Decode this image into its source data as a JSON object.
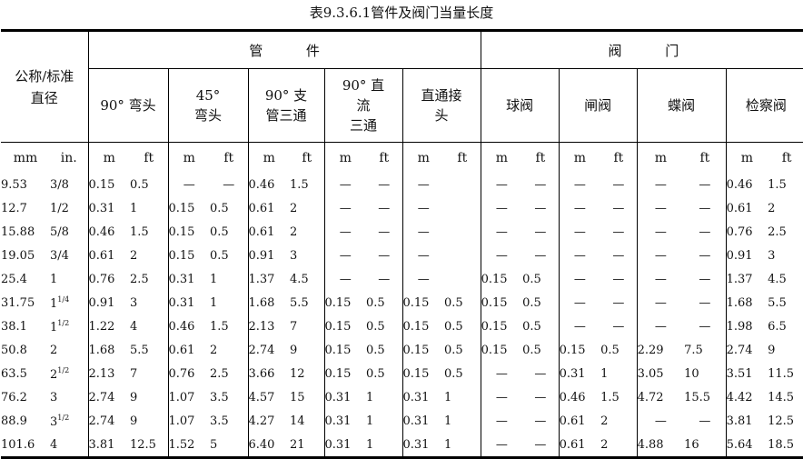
{
  "title": "表9.3.6.1管件及阀门当量长度",
  "header": {
    "nominal": "公称/标准\n直径",
    "group_pipe": "管          件",
    "group_valve": "阀          门",
    "subs": [
      "90° 弯头",
      "45°\n弯头",
      "90° 支\n管三通",
      "90° 直\n流\n三通",
      "直通接\n头",
      "球阀",
      "闸阀",
      "蝶阀",
      "检察阀"
    ],
    "unit_mm": "mm",
    "unit_in": "in.",
    "unit_m": "m",
    "unit_ft": "ft"
  },
  "rows": [
    {
      "mm": "9.53",
      "in": "3/8",
      "in_sup": "",
      "v": [
        "0.15",
        "0.5",
        "—",
        "—",
        "0.46",
        "1.5",
        "—",
        "—",
        "—",
        "",
        "—",
        "—",
        "—",
        "—",
        "—",
        "—",
        "0.46",
        "1.5"
      ]
    },
    {
      "mm": "12.7",
      "in": "1/2",
      "in_sup": "",
      "v": [
        "0.31",
        "1",
        "0.15",
        "0.5",
        "0.61",
        "2",
        "—",
        "—",
        "—",
        "",
        "—",
        "—",
        "—",
        "—",
        "—",
        "—",
        "0.61",
        "2"
      ]
    },
    {
      "mm": "15.88",
      "in": "5/8",
      "in_sup": "",
      "v": [
        "0.46",
        "1.5",
        "0.15",
        "0.5",
        "0.61",
        "2",
        "—",
        "—",
        "—",
        "",
        "—",
        "—",
        "—",
        "—",
        "—",
        "—",
        "0.76",
        "2.5"
      ]
    },
    {
      "mm": "19.05",
      "in": "3/4",
      "in_sup": "",
      "v": [
        "0.61",
        "2",
        "0.15",
        "0.5",
        "0.91",
        "3",
        "—",
        "—",
        "—",
        "",
        "—",
        "—",
        "—",
        "—",
        "—",
        "—",
        "0.91",
        "3"
      ]
    },
    {
      "mm": "25.4",
      "in": "1",
      "in_sup": "",
      "v": [
        "0.76",
        "2.5",
        "0.31",
        "1",
        "1.37",
        "4.5",
        "—",
        "—",
        "—",
        "",
        "0.15",
        "0.5",
        "—",
        "—",
        "—",
        "—",
        "1.37",
        "4.5"
      ]
    },
    {
      "mm": "31.75",
      "in": "1",
      "in_sup": "1/4",
      "v": [
        "0.91",
        "3",
        "0.31",
        "1",
        "1.68",
        "5.5",
        "0.15",
        "0.5",
        "0.15",
        "0.5",
        "0.15",
        "0.5",
        "—",
        "—",
        "—",
        "—",
        "1.68",
        "5.5"
      ]
    },
    {
      "mm": "38.1",
      "in": "1",
      "in_sup": "1/2",
      "v": [
        "1.22",
        "4",
        "0.46",
        "1.5",
        "2.13",
        "7",
        "0.15",
        "0.5",
        "0.15",
        "0.5",
        "0.15",
        "0.5",
        "—",
        "—",
        "—",
        "—",
        "1.98",
        "6.5"
      ]
    },
    {
      "mm": "50.8",
      "in": "2",
      "in_sup": "",
      "v": [
        "1.68",
        "5.5",
        "0.61",
        "2",
        "2.74",
        "9",
        "0.15",
        "0.5",
        "0.15",
        "0.5",
        "0.15",
        "0.5",
        "0.15",
        "0.5",
        "2.29",
        "7.5",
        "2.74",
        "9"
      ]
    },
    {
      "mm": "63.5",
      "in": "2",
      "in_sup": "1/2",
      "v": [
        "2.13",
        "7",
        "0.76",
        "2.5",
        "3.66",
        "12",
        "0.15",
        "0.5",
        "0.15",
        "0.5",
        "—",
        "—",
        "0.31",
        "1",
        "3.05",
        "10",
        "3.51",
        "11.5"
      ]
    },
    {
      "mm": "76.2",
      "in": "3",
      "in_sup": "",
      "v": [
        "2.74",
        "9",
        "1.07",
        "3.5",
        "4.57",
        "15",
        "0.31",
        "1",
        "0.31",
        "1",
        "—",
        "—",
        "0.46",
        "1.5",
        "4.72",
        "15.5",
        "4.42",
        "14.5"
      ]
    },
    {
      "mm": "88.9",
      "in": "3",
      "in_sup": "1/2",
      "v": [
        "2.74",
        "9",
        "1.07",
        "3.5",
        "4.27",
        "14",
        "0.31",
        "1",
        "0.31",
        "1",
        "—",
        "—",
        "0.61",
        "2",
        "—",
        "—",
        "3.81",
        "12.5"
      ]
    },
    {
      "mm": "101.6",
      "in": "4",
      "in_sup": "",
      "v": [
        "3.81",
        "12.5",
        "1.52",
        "5",
        "6.40",
        "21",
        "0.31",
        "1",
        "0.31",
        "1",
        "—",
        "—",
        "0.61",
        "2",
        "4.88",
        "16",
        "5.64",
        "18.5"
      ]
    }
  ]
}
